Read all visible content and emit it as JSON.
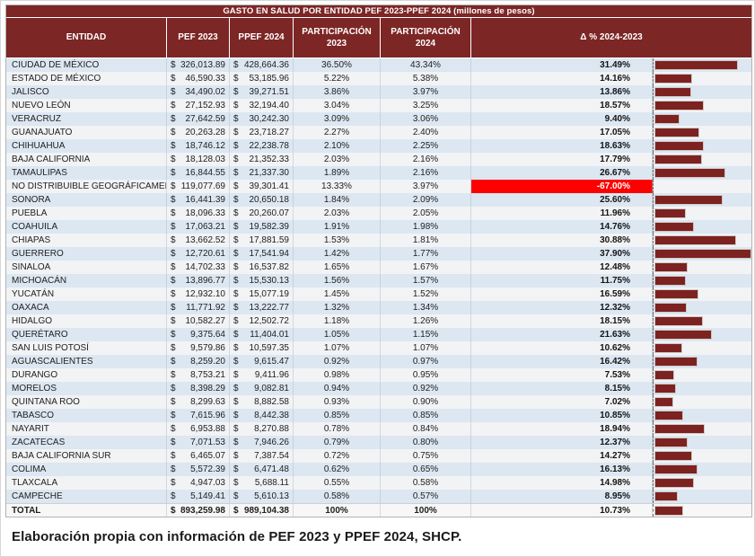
{
  "title": "GASTO EN SALUD POR ENTIDAD PEF 2023-PPEF 2024 (millones de pesos)",
  "footer": "Elaboración propia con información de PEF 2023 y PPEF 2024, SHCP.",
  "currency": "$",
  "columns": {
    "entidad": "ENTIDAD",
    "pef2023": "PEF 2023",
    "ppef2024": "PPEF 2024",
    "part2023": "PARTICIPACIÓN 2023",
    "part2024": "PARTICIPACIÓN 2024",
    "delta": "Δ % 2024-2023"
  },
  "colors": {
    "header_maroon": "#7c2625",
    "bar_maroon": "#7c2220",
    "highlight_red": "#fe0000",
    "stripe_blue": "#dce7f2",
    "stripe_white": "#f2f3f5"
  },
  "table": {
    "rows": [
      {
        "entity": "CIUDAD DE MÉXICO",
        "pef": "326,013.89",
        "ppef": "428,664.36",
        "part2023": "36.50%",
        "part2024": "43.34%",
        "delta_label": "31.49%",
        "delta_value": 31.49,
        "highlight": false
      },
      {
        "entity": "ESTADO DE MÉXICO",
        "pef": "46,590.33",
        "ppef": "53,185.96",
        "part2023": "5.22%",
        "part2024": "5.38%",
        "delta_label": "14.16%",
        "delta_value": 14.16,
        "highlight": false
      },
      {
        "entity": "JALISCO",
        "pef": "34,490.02",
        "ppef": "39,271.51",
        "part2023": "3.86%",
        "part2024": "3.97%",
        "delta_label": "13.86%",
        "delta_value": 13.86,
        "highlight": false
      },
      {
        "entity": "NUEVO LEÓN",
        "pef": "27,152.93",
        "ppef": "32,194.40",
        "part2023": "3.04%",
        "part2024": "3.25%",
        "delta_label": "18.57%",
        "delta_value": 18.57,
        "highlight": false
      },
      {
        "entity": "VERACRUZ",
        "pef": "27,642.59",
        "ppef": "30,242.30",
        "part2023": "3.09%",
        "part2024": "3.06%",
        "delta_label": "9.40%",
        "delta_value": 9.4,
        "highlight": false
      },
      {
        "entity": "GUANAJUATO",
        "pef": "20,263.28",
        "ppef": "23,718.27",
        "part2023": "2.27%",
        "part2024": "2.40%",
        "delta_label": "17.05%",
        "delta_value": 17.05,
        "highlight": false
      },
      {
        "entity": "CHIHUAHUA",
        "pef": "18,746.12",
        "ppef": "22,238.78",
        "part2023": "2.10%",
        "part2024": "2.25%",
        "delta_label": "18.63%",
        "delta_value": 18.63,
        "highlight": false
      },
      {
        "entity": "BAJA CALIFORNIA",
        "pef": "18,128.03",
        "ppef": "21,352.33",
        "part2023": "2.03%",
        "part2024": "2.16%",
        "delta_label": "17.79%",
        "delta_value": 17.79,
        "highlight": false
      },
      {
        "entity": "TAMAULIPAS",
        "pef": "16,844.55",
        "ppef": "21,337.30",
        "part2023": "1.89%",
        "part2024": "2.16%",
        "delta_label": "26.67%",
        "delta_value": 26.67,
        "highlight": false
      },
      {
        "entity": "NO DISTRIBUIBLE GEOGRÁFICAMENTE",
        "pef": "119,077.69",
        "ppef": "39,301.41",
        "part2023": "13.33%",
        "part2024": "3.97%",
        "delta_label": "-67.00%",
        "delta_value": -67.0,
        "highlight": true
      },
      {
        "entity": "SONORA",
        "pef": "16,441.39",
        "ppef": "20,650.18",
        "part2023": "1.84%",
        "part2024": "2.09%",
        "delta_label": "25.60%",
        "delta_value": 25.6,
        "highlight": false
      },
      {
        "entity": "PUEBLA",
        "pef": "18,096.33",
        "ppef": "20,260.07",
        "part2023": "2.03%",
        "part2024": "2.05%",
        "delta_label": "11.96%",
        "delta_value": 11.96,
        "highlight": false
      },
      {
        "entity": "COAHUILA",
        "pef": "17,063.21",
        "ppef": "19,582.39",
        "part2023": "1.91%",
        "part2024": "1.98%",
        "delta_label": "14.76%",
        "delta_value": 14.76,
        "highlight": false
      },
      {
        "entity": "CHIAPAS",
        "pef": "13,662.52",
        "ppef": "17,881.59",
        "part2023": "1.53%",
        "part2024": "1.81%",
        "delta_label": "30.88%",
        "delta_value": 30.88,
        "highlight": false
      },
      {
        "entity": "GUERRERO",
        "pef": "12,720.61",
        "ppef": "17,541.94",
        "part2023": "1.42%",
        "part2024": "1.77%",
        "delta_label": "37.90%",
        "delta_value": 37.9,
        "highlight": false
      },
      {
        "entity": "SINALOA",
        "pef": "14,702.33",
        "ppef": "16,537.82",
        "part2023": "1.65%",
        "part2024": "1.67%",
        "delta_label": "12.48%",
        "delta_value": 12.48,
        "highlight": false
      },
      {
        "entity": "MICHOACÁN",
        "pef": "13,896.77",
        "ppef": "15,530.13",
        "part2023": "1.56%",
        "part2024": "1.57%",
        "delta_label": "11.75%",
        "delta_value": 11.75,
        "highlight": false
      },
      {
        "entity": "YUCATÁN",
        "pef": "12,932.10",
        "ppef": "15,077.19",
        "part2023": "1.45%",
        "part2024": "1.52%",
        "delta_label": "16.59%",
        "delta_value": 16.59,
        "highlight": false
      },
      {
        "entity": "OAXACA",
        "pef": "11,771.92",
        "ppef": "13,222.77",
        "part2023": "1.32%",
        "part2024": "1.34%",
        "delta_label": "12.32%",
        "delta_value": 12.32,
        "highlight": false
      },
      {
        "entity": "HIDALGO",
        "pef": "10,582.27",
        "ppef": "12,502.72",
        "part2023": "1.18%",
        "part2024": "1.26%",
        "delta_label": "18.15%",
        "delta_value": 18.15,
        "highlight": false
      },
      {
        "entity": "QUERÉTARO",
        "pef": "9,375.64",
        "ppef": "11,404.01",
        "part2023": "1.05%",
        "part2024": "1.15%",
        "delta_label": "21.63%",
        "delta_value": 21.63,
        "highlight": false
      },
      {
        "entity": "SAN LUIS POTOSÍ",
        "pef": "9,579.86",
        "ppef": "10,597.35",
        "part2023": "1.07%",
        "part2024": "1.07%",
        "delta_label": "10.62%",
        "delta_value": 10.62,
        "highlight": false
      },
      {
        "entity": "AGUASCALIENTES",
        "pef": "8,259.20",
        "ppef": "9,615.47",
        "part2023": "0.92%",
        "part2024": "0.97%",
        "delta_label": "16.42%",
        "delta_value": 16.42,
        "highlight": false
      },
      {
        "entity": "DURANGO",
        "pef": "8,753.21",
        "ppef": "9,411.96",
        "part2023": "0.98%",
        "part2024": "0.95%",
        "delta_label": "7.53%",
        "delta_value": 7.53,
        "highlight": false
      },
      {
        "entity": "MORELOS",
        "pef": "8,398.29",
        "ppef": "9,082.81",
        "part2023": "0.94%",
        "part2024": "0.92%",
        "delta_label": "8.15%",
        "delta_value": 8.15,
        "highlight": false
      },
      {
        "entity": "QUINTANA ROO",
        "pef": "8,299.63",
        "ppef": "8,882.58",
        "part2023": "0.93%",
        "part2024": "0.90%",
        "delta_label": "7.02%",
        "delta_value": 7.02,
        "highlight": false
      },
      {
        "entity": "TABASCO",
        "pef": "7,615.96",
        "ppef": "8,442.38",
        "part2023": "0.85%",
        "part2024": "0.85%",
        "delta_label": "10.85%",
        "delta_value": 10.85,
        "highlight": false
      },
      {
        "entity": "NAYARIT",
        "pef": "6,953.88",
        "ppef": "8,270.88",
        "part2023": "0.78%",
        "part2024": "0.84%",
        "delta_label": "18.94%",
        "delta_value": 18.94,
        "highlight": false
      },
      {
        "entity": "ZACATECAS",
        "pef": "7,071.53",
        "ppef": "7,946.26",
        "part2023": "0.79%",
        "part2024": "0.80%",
        "delta_label": "12.37%",
        "delta_value": 12.37,
        "highlight": false
      },
      {
        "entity": "BAJA CALIFORNIA SUR",
        "pef": "6,465.07",
        "ppef": "7,387.54",
        "part2023": "0.72%",
        "part2024": "0.75%",
        "delta_label": "14.27%",
        "delta_value": 14.27,
        "highlight": false
      },
      {
        "entity": "COLIMA",
        "pef": "5,572.39",
        "ppef": "6,471.48",
        "part2023": "0.62%",
        "part2024": "0.65%",
        "delta_label": "16.13%",
        "delta_value": 16.13,
        "highlight": false
      },
      {
        "entity": "TLAXCALA",
        "pef": "4,947.03",
        "ppef": "5,688.11",
        "part2023": "0.55%",
        "part2024": "0.58%",
        "delta_label": "14.98%",
        "delta_value": 14.98,
        "highlight": false
      },
      {
        "entity": "CAMPECHE",
        "pef": "5,149.41",
        "ppef": "5,610.13",
        "part2023": "0.58%",
        "part2024": "0.57%",
        "delta_label": "8.95%",
        "delta_value": 8.95,
        "highlight": false
      }
    ],
    "total": {
      "entity": "TOTAL",
      "pef": "893,259.98",
      "ppef": "989,104.38",
      "part2023": "100%",
      "part2024": "100%",
      "delta_label": "10.73%",
      "delta_value": 10.73,
      "highlight": false
    }
  },
  "chart_data": {
    "type": "bar",
    "title": "Δ % 2024-2023",
    "orientation": "horizontal",
    "categories": [
      "CIUDAD DE MÉXICO",
      "ESTADO DE MÉXICO",
      "JALISCO",
      "NUEVO LEÓN",
      "VERACRUZ",
      "GUANAJUATO",
      "CHIHUAHUA",
      "BAJA CALIFORNIA",
      "TAMAULIPAS",
      "NO DISTRIBUIBLE GEOGRÁFICAMENTE",
      "SONORA",
      "PUEBLA",
      "COAHUILA",
      "CHIAPAS",
      "GUERRERO",
      "SINALOA",
      "MICHOACÁN",
      "YUCATÁN",
      "OAXACA",
      "HIDALGO",
      "QUERÉTARO",
      "SAN LUIS POTOSÍ",
      "AGUASCALIENTES",
      "DURANGO",
      "MORELOS",
      "QUINTANA ROO",
      "TABASCO",
      "NAYARIT",
      "ZACATECAS",
      "BAJA CALIFORNIA SUR",
      "COLIMA",
      "TLAXCALA",
      "CAMPECHE",
      "TOTAL"
    ],
    "values": [
      31.49,
      14.16,
      13.86,
      18.57,
      9.4,
      17.05,
      18.63,
      17.79,
      26.67,
      -67.0,
      25.6,
      11.96,
      14.76,
      30.88,
      37.9,
      12.48,
      11.75,
      16.59,
      12.32,
      18.15,
      21.63,
      10.62,
      16.42,
      7.53,
      8.15,
      7.02,
      10.85,
      18.94,
      12.37,
      14.27,
      16.13,
      14.98,
      8.95,
      10.73
    ],
    "xlabel": "",
    "ylabel": "",
    "xlim": [
      0,
      38
    ],
    "grid": false,
    "legend_position": "none",
    "bar_color": "#7c2220",
    "negative_bars_hidden": true
  }
}
